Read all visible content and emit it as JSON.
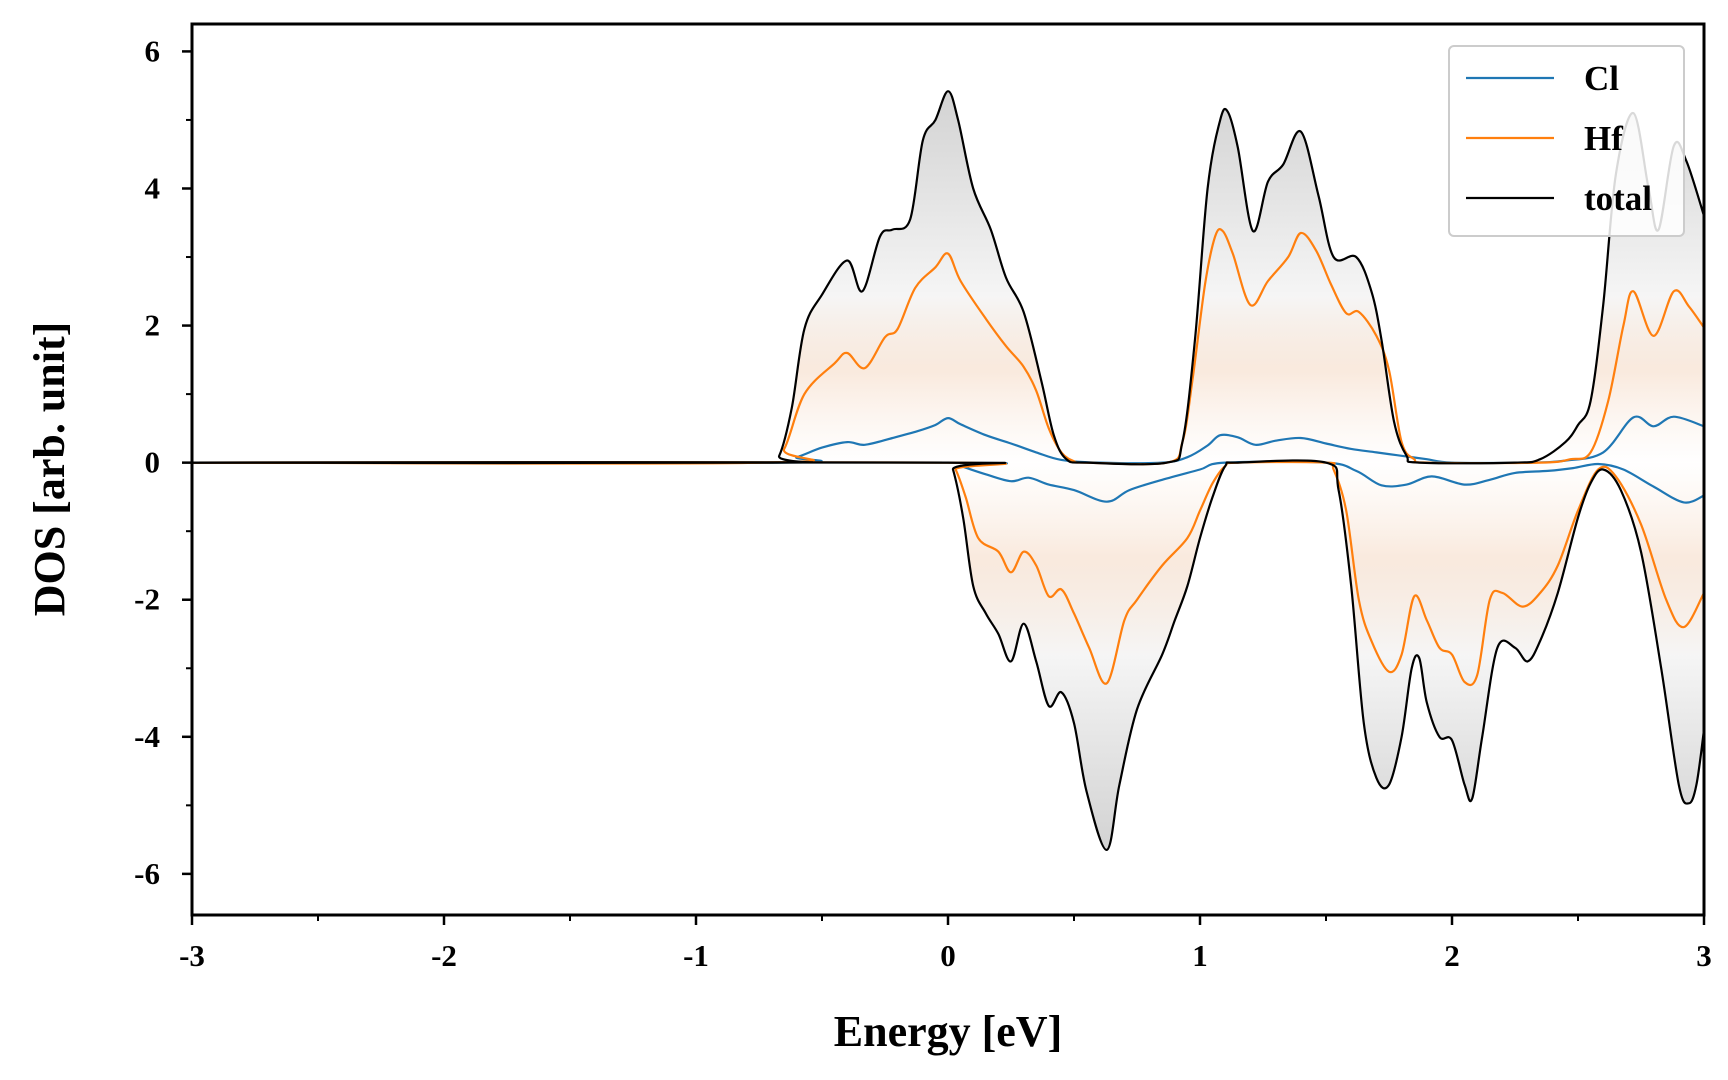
{
  "chart_data": {
    "type": "area",
    "xlabel": "Energy [eV]",
    "ylabel": "DOS [arb. unit]",
    "xlim": [
      -3,
      3
    ],
    "ylim": [
      -6.6,
      6.4
    ],
    "xticks": [
      -3,
      -2,
      -1,
      0,
      1,
      2,
      3
    ],
    "xtick_labels": [
      "-3",
      "-2",
      "-1",
      "0",
      "1",
      "2",
      "3"
    ],
    "xminor_ticks": [
      -2.5,
      -1.5,
      -0.5,
      0.5,
      1.5,
      2.5
    ],
    "yticks": [
      -6,
      -4,
      -2,
      0,
      2,
      4,
      6
    ],
    "ytick_labels": [
      "-6",
      "-4",
      "-2",
      "0",
      "2",
      "4",
      "6"
    ],
    "yminor_ticks": [
      -5,
      -3,
      -1,
      1,
      3,
      5
    ],
    "legend_position": "top-right",
    "fill": "gradient shading between spin-up and spin-down total/Hf curves",
    "series": [
      {
        "name": "Cl",
        "color": "#1f77b4",
        "up": [
          [
            -3,
            0
          ],
          [
            -0.7,
            0
          ],
          [
            -0.6,
            0.08
          ],
          [
            -0.5,
            0.22
          ],
          [
            -0.4,
            0.3
          ],
          [
            -0.33,
            0.26
          ],
          [
            -0.22,
            0.36
          ],
          [
            -0.12,
            0.46
          ],
          [
            -0.05,
            0.55
          ],
          [
            0,
            0.65
          ],
          [
            0.05,
            0.56
          ],
          [
            0.15,
            0.4
          ],
          [
            0.25,
            0.28
          ],
          [
            0.35,
            0.15
          ],
          [
            0.45,
            0.04
          ],
          [
            0.6,
            0
          ],
          [
            0.85,
            0
          ],
          [
            0.95,
            0.08
          ],
          [
            1.03,
            0.25
          ],
          [
            1.08,
            0.4
          ],
          [
            1.15,
            0.37
          ],
          [
            1.22,
            0.26
          ],
          [
            1.3,
            0.32
          ],
          [
            1.4,
            0.36
          ],
          [
            1.5,
            0.28
          ],
          [
            1.6,
            0.2
          ],
          [
            1.7,
            0.15
          ],
          [
            1.8,
            0.1
          ],
          [
            1.9,
            0.05
          ],
          [
            2.0,
            0
          ],
          [
            2.3,
            0
          ],
          [
            2.45,
            0.03
          ],
          [
            2.6,
            0.15
          ],
          [
            2.72,
            0.66
          ],
          [
            2.8,
            0.53
          ],
          [
            2.88,
            0.67
          ],
          [
            3,
            0.53
          ]
        ],
        "down": [
          [
            -3,
            0
          ],
          [
            0,
            0
          ],
          [
            0.05,
            -0.05
          ],
          [
            0.15,
            -0.17
          ],
          [
            0.25,
            -0.27
          ],
          [
            0.32,
            -0.22
          ],
          [
            0.4,
            -0.32
          ],
          [
            0.5,
            -0.4
          ],
          [
            0.63,
            -0.57
          ],
          [
            0.72,
            -0.4
          ],
          [
            0.85,
            -0.25
          ],
          [
            1.0,
            -0.1
          ],
          [
            1.1,
            0
          ],
          [
            1.5,
            0
          ],
          [
            1.62,
            -0.12
          ],
          [
            1.72,
            -0.33
          ],
          [
            1.82,
            -0.32
          ],
          [
            1.92,
            -0.2
          ],
          [
            2.05,
            -0.32
          ],
          [
            2.15,
            -0.25
          ],
          [
            2.25,
            -0.15
          ],
          [
            2.38,
            -0.12
          ],
          [
            2.48,
            -0.08
          ],
          [
            2.58,
            -0.02
          ],
          [
            2.68,
            -0.1
          ],
          [
            2.8,
            -0.35
          ],
          [
            2.92,
            -0.58
          ],
          [
            3,
            -0.48
          ]
        ]
      },
      {
        "name": "Hf",
        "color": "#ff7f0e",
        "up": [
          [
            -3,
            0
          ],
          [
            -0.72,
            0
          ],
          [
            -0.65,
            0.2
          ],
          [
            -0.57,
            1.0
          ],
          [
            -0.45,
            1.45
          ],
          [
            -0.4,
            1.6
          ],
          [
            -0.33,
            1.38
          ],
          [
            -0.25,
            1.83
          ],
          [
            -0.2,
            1.95
          ],
          [
            -0.13,
            2.55
          ],
          [
            -0.05,
            2.85
          ],
          [
            0,
            3.05
          ],
          [
            0.05,
            2.65
          ],
          [
            0.15,
            2.1
          ],
          [
            0.23,
            1.7
          ],
          [
            0.3,
            1.4
          ],
          [
            0.35,
            1.05
          ],
          [
            0.4,
            0.5
          ],
          [
            0.45,
            0.15
          ],
          [
            0.5,
            0.02
          ],
          [
            0.55,
            0
          ],
          [
            0.87,
            0
          ],
          [
            0.93,
            0.3
          ],
          [
            0.97,
            1.2
          ],
          [
            1.02,
            2.6
          ],
          [
            1.06,
            3.3
          ],
          [
            1.09,
            3.38
          ],
          [
            1.13,
            3.05
          ],
          [
            1.2,
            2.3
          ],
          [
            1.27,
            2.65
          ],
          [
            1.35,
            3.0
          ],
          [
            1.4,
            3.35
          ],
          [
            1.46,
            3.1
          ],
          [
            1.52,
            2.6
          ],
          [
            1.58,
            2.18
          ],
          [
            1.63,
            2.2
          ],
          [
            1.7,
            1.85
          ],
          [
            1.75,
            1.35
          ],
          [
            1.8,
            0.3
          ],
          [
            1.85,
            0.05
          ],
          [
            1.9,
            0
          ],
          [
            2.35,
            0
          ],
          [
            2.47,
            0.05
          ],
          [
            2.55,
            0.15
          ],
          [
            2.62,
            0.9
          ],
          [
            2.68,
            2.0
          ],
          [
            2.72,
            2.5
          ],
          [
            2.8,
            1.85
          ],
          [
            2.88,
            2.5
          ],
          [
            2.94,
            2.28
          ],
          [
            3,
            1.97
          ]
        ],
        "down": [
          [
            -3,
            0
          ],
          [
            0,
            0
          ],
          [
            0.03,
            -0.1
          ],
          [
            0.07,
            -0.5
          ],
          [
            0.12,
            -1.1
          ],
          [
            0.2,
            -1.3
          ],
          [
            0.25,
            -1.6
          ],
          [
            0.3,
            -1.3
          ],
          [
            0.35,
            -1.5
          ],
          [
            0.4,
            -1.95
          ],
          [
            0.45,
            -1.85
          ],
          [
            0.5,
            -2.2
          ],
          [
            0.56,
            -2.7
          ],
          [
            0.63,
            -3.22
          ],
          [
            0.7,
            -2.3
          ],
          [
            0.75,
            -2.0
          ],
          [
            0.85,
            -1.5
          ],
          [
            0.95,
            -1.1
          ],
          [
            1.0,
            -0.7
          ],
          [
            1.05,
            -0.3
          ],
          [
            1.1,
            -0.05
          ],
          [
            1.15,
            0
          ],
          [
            1.5,
            0
          ],
          [
            1.53,
            -0.1
          ],
          [
            1.58,
            -0.7
          ],
          [
            1.63,
            -2.0
          ],
          [
            1.68,
            -2.6
          ],
          [
            1.75,
            -3.05
          ],
          [
            1.8,
            -2.8
          ],
          [
            1.85,
            -1.95
          ],
          [
            1.9,
            -2.3
          ],
          [
            1.95,
            -2.7
          ],
          [
            2.0,
            -2.8
          ],
          [
            2.05,
            -3.2
          ],
          [
            2.1,
            -3.1
          ],
          [
            2.15,
            -2.0
          ],
          [
            2.2,
            -1.9
          ],
          [
            2.28,
            -2.1
          ],
          [
            2.35,
            -1.9
          ],
          [
            2.42,
            -1.5
          ],
          [
            2.5,
            -0.7
          ],
          [
            2.58,
            -0.1
          ],
          [
            2.65,
            -0.2
          ],
          [
            2.75,
            -0.9
          ],
          [
            2.85,
            -2.0
          ],
          [
            2.92,
            -2.4
          ],
          [
            3,
            -1.9
          ]
        ]
      },
      {
        "name": "total",
        "color": "#000000",
        "up": [
          [
            -3,
            0
          ],
          [
            -0.72,
            0
          ],
          [
            -0.67,
            0.1
          ],
          [
            -0.62,
            0.8
          ],
          [
            -0.57,
            1.95
          ],
          [
            -0.5,
            2.45
          ],
          [
            -0.4,
            2.95
          ],
          [
            -0.34,
            2.5
          ],
          [
            -0.27,
            3.3
          ],
          [
            -0.22,
            3.4
          ],
          [
            -0.15,
            3.55
          ],
          [
            -0.1,
            4.7
          ],
          [
            -0.05,
            5.0
          ],
          [
            0,
            5.42
          ],
          [
            0.04,
            5.0
          ],
          [
            0.1,
            4.0
          ],
          [
            0.17,
            3.4
          ],
          [
            0.23,
            2.7
          ],
          [
            0.3,
            2.2
          ],
          [
            0.37,
            1.2
          ],
          [
            0.42,
            0.4
          ],
          [
            0.47,
            0.05
          ],
          [
            0.55,
            0
          ],
          [
            0.87,
            0
          ],
          [
            0.93,
            0.3
          ],
          [
            0.98,
            1.8
          ],
          [
            1.03,
            4.0
          ],
          [
            1.08,
            5.0
          ],
          [
            1.11,
            5.12
          ],
          [
            1.15,
            4.6
          ],
          [
            1.21,
            3.38
          ],
          [
            1.27,
            4.1
          ],
          [
            1.33,
            4.35
          ],
          [
            1.4,
            4.83
          ],
          [
            1.47,
            3.9
          ],
          [
            1.53,
            3.0
          ],
          [
            1.62,
            3.0
          ],
          [
            1.68,
            2.5
          ],
          [
            1.72,
            1.8
          ],
          [
            1.77,
            0.6
          ],
          [
            1.82,
            0.1
          ],
          [
            1.87,
            0
          ],
          [
            2.25,
            0
          ],
          [
            2.35,
            0.05
          ],
          [
            2.45,
            0.3
          ],
          [
            2.5,
            0.55
          ],
          [
            2.55,
            0.9
          ],
          [
            2.6,
            2.3
          ],
          [
            2.65,
            4.2
          ],
          [
            2.72,
            5.1
          ],
          [
            2.78,
            4.0
          ],
          [
            2.82,
            3.4
          ],
          [
            2.88,
            4.62
          ],
          [
            2.93,
            4.4
          ],
          [
            3,
            3.6
          ]
        ],
        "down": [
          [
            -3,
            0
          ],
          [
            0,
            0
          ],
          [
            0.02,
            -0.1
          ],
          [
            0.06,
            -0.8
          ],
          [
            0.1,
            -1.8
          ],
          [
            0.15,
            -2.2
          ],
          [
            0.2,
            -2.5
          ],
          [
            0.25,
            -2.9
          ],
          [
            0.3,
            -2.35
          ],
          [
            0.35,
            -2.9
          ],
          [
            0.4,
            -3.55
          ],
          [
            0.45,
            -3.35
          ],
          [
            0.5,
            -3.8
          ],
          [
            0.55,
            -4.8
          ],
          [
            0.63,
            -5.65
          ],
          [
            0.68,
            -4.7
          ],
          [
            0.75,
            -3.6
          ],
          [
            0.85,
            -2.8
          ],
          [
            0.9,
            -2.3
          ],
          [
            0.95,
            -1.8
          ],
          [
            1.0,
            -1.1
          ],
          [
            1.05,
            -0.5
          ],
          [
            1.1,
            -0.05
          ],
          [
            1.15,
            0
          ],
          [
            1.5,
            0
          ],
          [
            1.55,
            -0.4
          ],
          [
            1.6,
            -1.8
          ],
          [
            1.65,
            -3.8
          ],
          [
            1.7,
            -4.6
          ],
          [
            1.75,
            -4.7
          ],
          [
            1.8,
            -4.0
          ],
          [
            1.84,
            -3.0
          ],
          [
            1.87,
            -2.85
          ],
          [
            1.9,
            -3.5
          ],
          [
            1.95,
            -4.0
          ],
          [
            2.0,
            -4.05
          ],
          [
            2.05,
            -4.7
          ],
          [
            2.08,
            -4.9
          ],
          [
            2.12,
            -4.0
          ],
          [
            2.18,
            -2.7
          ],
          [
            2.25,
            -2.7
          ],
          [
            2.3,
            -2.9
          ],
          [
            2.35,
            -2.6
          ],
          [
            2.42,
            -1.9
          ],
          [
            2.5,
            -0.8
          ],
          [
            2.55,
            -0.3
          ],
          [
            2.6,
            -0.1
          ],
          [
            2.67,
            -0.4
          ],
          [
            2.75,
            -1.3
          ],
          [
            2.83,
            -3.0
          ],
          [
            2.9,
            -4.7
          ],
          [
            2.94,
            -4.97
          ],
          [
            2.97,
            -4.7
          ],
          [
            3,
            -3.9
          ]
        ]
      }
    ]
  }
}
